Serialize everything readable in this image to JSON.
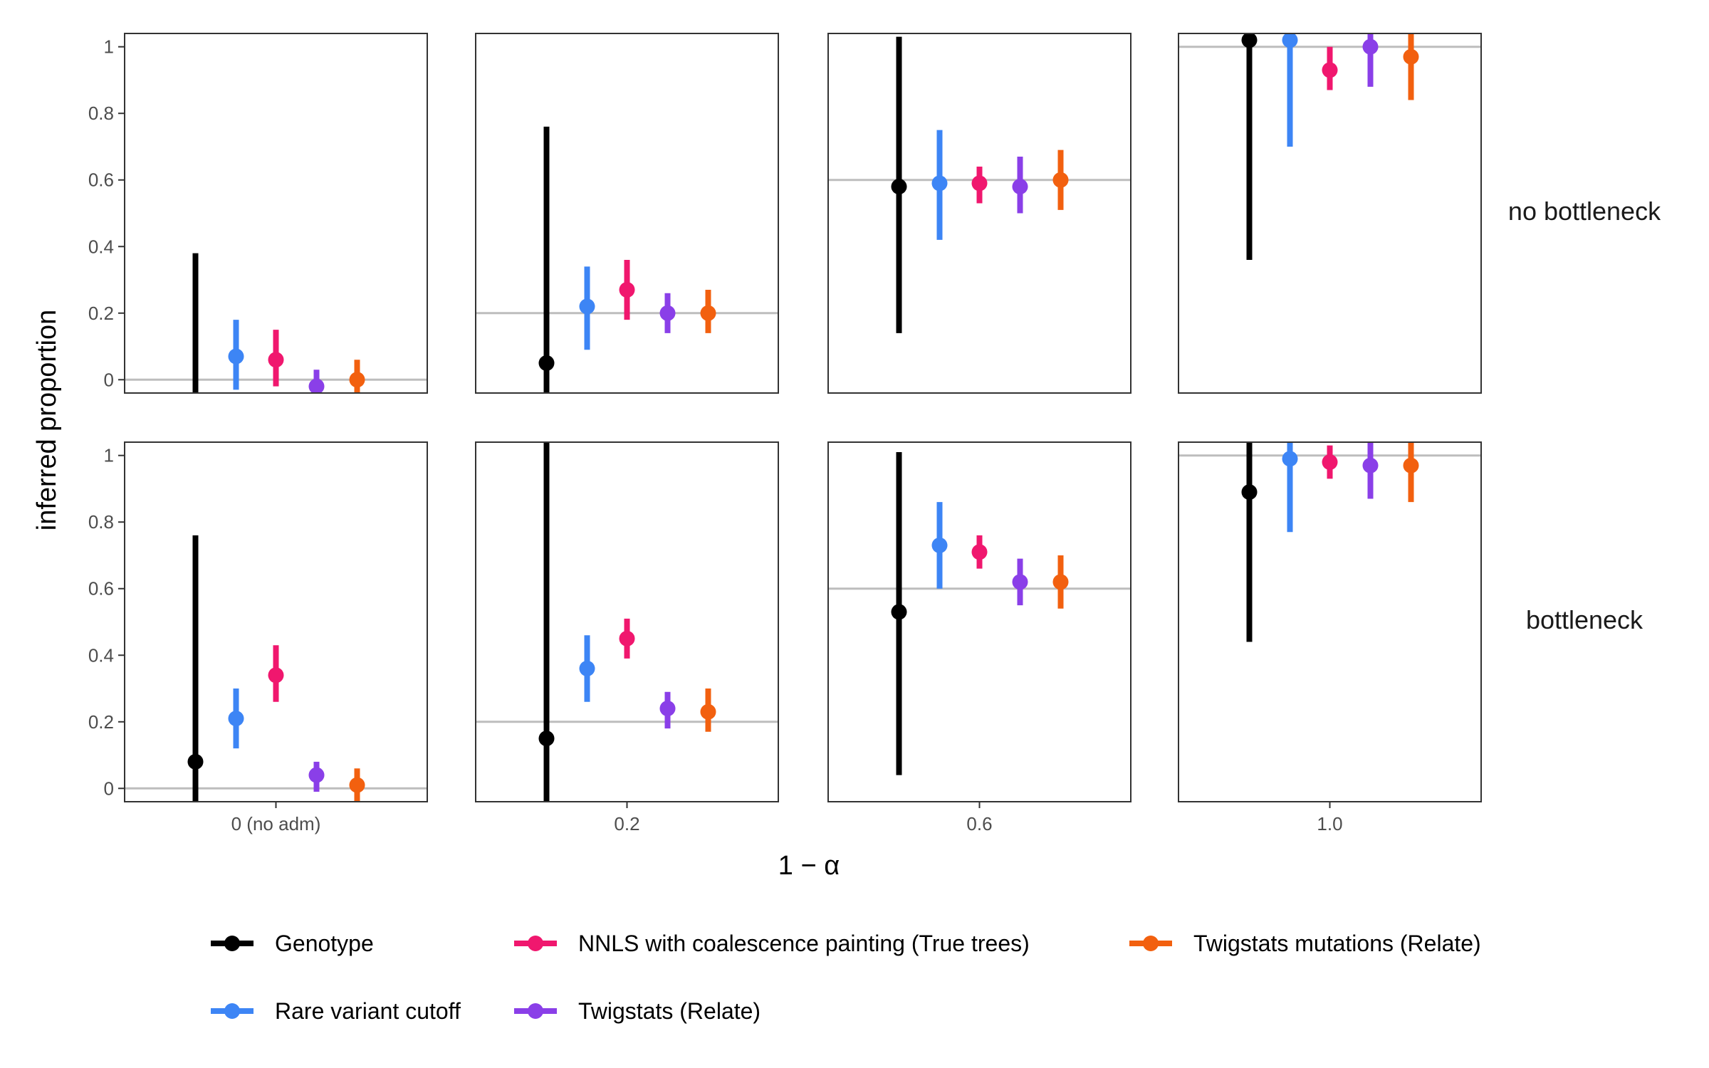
{
  "chart_data": {
    "type": "scatter",
    "subtype": "pointrange-facet-grid",
    "title": "",
    "xlabel": "1 − α",
    "ylabel": "inferred proportion",
    "ylim": [
      -0.04,
      1.04
    ],
    "y_ticks": [
      0,
      0.2,
      0.4,
      0.6,
      0.8,
      1
    ],
    "y_tick_labels": [
      "0",
      "0.2",
      "0.4",
      "0.6",
      "0.8",
      "1"
    ],
    "grid": false,
    "legend_position": "bottom",
    "columns": [
      {
        "label": "0 (no adm)",
        "true_value": 0
      },
      {
        "label": "0.2",
        "true_value": 0.2
      },
      {
        "label": "0.6",
        "true_value": 0.6
      },
      {
        "label": "1.0",
        "true_value": 1.0
      }
    ],
    "rows": [
      {
        "label": "no bottleneck"
      },
      {
        "label": "bottleneck"
      }
    ],
    "series": [
      {
        "name": "Genotype",
        "color": "#000000",
        "points": [
          [
            {
              "y": null,
              "lo": -0.04,
              "hi": 0.38
            },
            {
              "y": 0.05,
              "lo": -0.04,
              "hi": 0.76
            },
            {
              "y": 0.58,
              "lo": 0.14,
              "hi": 1.03
            },
            {
              "y": 1.02,
              "lo": 0.36,
              "hi": 1.04
            }
          ],
          [
            {
              "y": 0.08,
              "lo": -0.04,
              "hi": 0.76
            },
            {
              "y": 0.15,
              "lo": -0.04,
              "hi": 1.04
            },
            {
              "y": 0.53,
              "lo": 0.04,
              "hi": 1.01
            },
            {
              "y": 0.89,
              "lo": 0.44,
              "hi": 1.04
            }
          ]
        ]
      },
      {
        "name": "Rare variant cutoff",
        "color": "#3d85f5",
        "points": [
          [
            {
              "y": 0.07,
              "lo": -0.03,
              "hi": 0.18
            },
            {
              "y": 0.22,
              "lo": 0.09,
              "hi": 0.34
            },
            {
              "y": 0.59,
              "lo": 0.42,
              "hi": 0.75
            },
            {
              "y": 1.02,
              "lo": 0.7,
              "hi": 1.04
            }
          ],
          [
            {
              "y": 0.21,
              "lo": 0.12,
              "hi": 0.3
            },
            {
              "y": 0.36,
              "lo": 0.26,
              "hi": 0.46
            },
            {
              "y": 0.73,
              "lo": 0.6,
              "hi": 0.86
            },
            {
              "y": 0.99,
              "lo": 0.77,
              "hi": 1.04
            }
          ]
        ]
      },
      {
        "name": "NNLS with coalescence painting (True trees)",
        "color": "#f0176e",
        "points": [
          [
            {
              "y": 0.06,
              "lo": -0.02,
              "hi": 0.15
            },
            {
              "y": 0.27,
              "lo": 0.18,
              "hi": 0.36
            },
            {
              "y": 0.59,
              "lo": 0.53,
              "hi": 0.64
            },
            {
              "y": 0.93,
              "lo": 0.87,
              "hi": 1.0
            }
          ],
          [
            {
              "y": 0.34,
              "lo": 0.26,
              "hi": 0.43
            },
            {
              "y": 0.45,
              "lo": 0.39,
              "hi": 0.51
            },
            {
              "y": 0.71,
              "lo": 0.66,
              "hi": 0.76
            },
            {
              "y": 0.98,
              "lo": 0.93,
              "hi": 1.03
            }
          ]
        ]
      },
      {
        "name": "Twigstats (Relate)",
        "color": "#8a3fe8",
        "points": [
          [
            {
              "y": -0.02,
              "lo": -0.04,
              "hi": 0.03
            },
            {
              "y": 0.2,
              "lo": 0.14,
              "hi": 0.26
            },
            {
              "y": 0.58,
              "lo": 0.5,
              "hi": 0.67
            },
            {
              "y": 1.0,
              "lo": 0.88,
              "hi": 1.04
            }
          ],
          [
            {
              "y": 0.04,
              "lo": -0.01,
              "hi": 0.08
            },
            {
              "y": 0.24,
              "lo": 0.18,
              "hi": 0.29
            },
            {
              "y": 0.62,
              "lo": 0.55,
              "hi": 0.69
            },
            {
              "y": 0.97,
              "lo": 0.87,
              "hi": 1.04
            }
          ]
        ]
      },
      {
        "name": "Twigstats mutations (Relate)",
        "color": "#f2600f",
        "points": [
          [
            {
              "y": 0.0,
              "lo": -0.04,
              "hi": 0.06
            },
            {
              "y": 0.2,
              "lo": 0.14,
              "hi": 0.27
            },
            {
              "y": 0.6,
              "lo": 0.51,
              "hi": 0.69
            },
            {
              "y": 0.97,
              "lo": 0.84,
              "hi": 1.04
            }
          ],
          [
            {
              "y": 0.01,
              "lo": -0.04,
              "hi": 0.06
            },
            {
              "y": 0.23,
              "lo": 0.17,
              "hi": 0.3
            },
            {
              "y": 0.62,
              "lo": 0.54,
              "hi": 0.7
            },
            {
              "y": 0.97,
              "lo": 0.86,
              "hi": 1.04
            }
          ]
        ]
      }
    ],
    "legend_order": [
      "Genotype",
      "NNLS with coalescence painting (True trees)",
      "Twigstats mutations (Relate)",
      "Rare variant cutoff",
      "Twigstats (Relate)"
    ],
    "reference_line_color": "#bdbdbd"
  }
}
